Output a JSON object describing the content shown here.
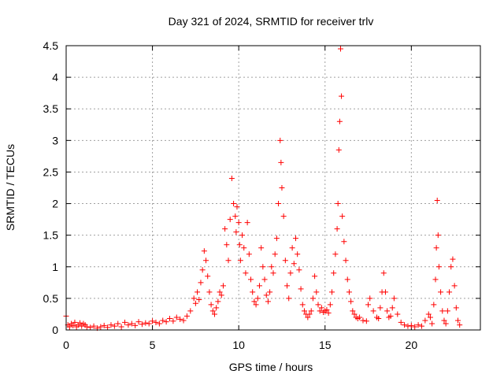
{
  "chart_data": {
    "type": "scatter",
    "title": "Day 321 of 2024, SRMTID for receiver trlv",
    "xlabel": "GPS time / hours",
    "ylabel": "SRMTID / TECUs",
    "xlim": [
      0,
      24
    ],
    "ylim": [
      0,
      4.5
    ],
    "x_ticks": [
      0,
      5,
      10,
      15,
      20
    ],
    "x_tick_labels": [
      "0",
      "5",
      "10",
      "15",
      "20"
    ],
    "y_ticks": [
      0,
      0.5,
      1,
      1.5,
      2,
      2.5,
      3,
      3.5,
      4,
      4.5
    ],
    "y_tick_labels": [
      "0",
      "0.5",
      "1",
      "1.5",
      "2",
      "2.5",
      "3",
      "3.5",
      "4",
      "4.5"
    ],
    "grid": true,
    "marker": "plus",
    "series": [
      {
        "name": "SRMTID",
        "color": "#ff0000",
        "x": [
          0.0,
          0.1,
          0.2,
          0.3,
          0.4,
          0.5,
          0.6,
          0.7,
          0.8,
          0.9,
          1.0,
          1.1,
          1.2,
          1.4,
          1.6,
          1.8,
          2.0,
          2.2,
          2.4,
          2.6,
          2.8,
          3.0,
          3.2,
          3.4,
          3.6,
          3.8,
          4.0,
          4.2,
          4.4,
          4.6,
          4.8,
          5.0,
          5.2,
          5.4,
          5.6,
          5.8,
          6.0,
          6.2,
          6.4,
          6.6,
          6.8,
          7.0,
          7.2,
          7.4,
          7.5,
          7.6,
          7.7,
          7.8,
          7.9,
          8.0,
          8.1,
          8.2,
          8.3,
          8.4,
          8.5,
          8.6,
          8.7,
          8.8,
          8.9,
          9.0,
          9.1,
          9.2,
          9.3,
          9.4,
          9.5,
          9.6,
          9.7,
          9.8,
          9.85,
          9.9,
          10.0,
          10.05,
          10.1,
          10.2,
          10.3,
          10.4,
          10.5,
          10.6,
          10.7,
          10.8,
          10.9,
          11.0,
          11.1,
          11.2,
          11.3,
          11.4,
          11.5,
          11.6,
          11.7,
          11.8,
          11.9,
          12.0,
          12.1,
          12.2,
          12.3,
          12.4,
          12.45,
          12.5,
          12.6,
          12.7,
          12.8,
          12.9,
          13.0,
          13.1,
          13.2,
          13.3,
          13.4,
          13.5,
          13.6,
          13.7,
          13.8,
          13.9,
          14.0,
          14.1,
          14.2,
          14.3,
          14.4,
          14.5,
          14.6,
          14.7,
          14.8,
          14.9,
          15.0,
          15.1,
          15.2,
          15.3,
          15.4,
          15.5,
          15.6,
          15.7,
          15.75,
          15.8,
          15.85,
          15.9,
          15.95,
          16.0,
          16.1,
          16.2,
          16.3,
          16.4,
          16.5,
          16.6,
          16.7,
          16.8,
          16.9,
          17.0,
          17.2,
          17.4,
          17.5,
          17.6,
          17.8,
          18.0,
          18.1,
          18.2,
          18.3,
          18.4,
          18.5,
          18.6,
          18.7,
          18.8,
          18.9,
          19.0,
          19.2,
          19.4,
          19.6,
          19.8,
          20.0,
          20.2,
          20.4,
          20.6,
          20.8,
          21.0,
          21.1,
          21.2,
          21.3,
          21.4,
          21.45,
          21.5,
          21.55,
          21.6,
          21.7,
          21.8,
          21.9,
          22.0,
          22.1,
          22.2,
          22.3,
          22.4,
          22.5,
          22.6,
          22.7,
          22.8
        ],
        "y": [
          0.22,
          0.08,
          0.05,
          0.1,
          0.07,
          0.12,
          0.05,
          0.08,
          0.11,
          0.06,
          0.1,
          0.08,
          0.05,
          0.04,
          0.06,
          0.03,
          0.05,
          0.07,
          0.04,
          0.08,
          0.06,
          0.1,
          0.05,
          0.12,
          0.08,
          0.1,
          0.07,
          0.13,
          0.09,
          0.11,
          0.1,
          0.14,
          0.12,
          0.1,
          0.15,
          0.13,
          0.18,
          0.14,
          0.2,
          0.17,
          0.15,
          0.22,
          0.3,
          0.5,
          0.42,
          0.6,
          0.48,
          0.75,
          0.95,
          1.25,
          1.1,
          0.85,
          0.6,
          0.4,
          0.3,
          0.25,
          0.35,
          0.45,
          0.6,
          0.55,
          0.7,
          1.6,
          1.35,
          1.1,
          1.75,
          2.4,
          2.0,
          1.8,
          1.55,
          1.95,
          1.7,
          1.35,
          1.1,
          1.5,
          1.3,
          0.9,
          1.7,
          1.2,
          0.8,
          0.6,
          0.45,
          0.4,
          0.5,
          0.7,
          1.3,
          1.0,
          0.8,
          0.55,
          0.45,
          0.6,
          1.0,
          0.9,
          1.2,
          1.45,
          2.0,
          3.0,
          2.65,
          2.25,
          1.8,
          1.1,
          0.7,
          0.5,
          0.9,
          1.3,
          1.05,
          1.45,
          1.2,
          0.95,
          0.65,
          0.4,
          0.3,
          0.25,
          0.2,
          0.25,
          0.3,
          0.5,
          0.85,
          0.6,
          0.4,
          0.3,
          0.35,
          0.28,
          0.3,
          0.32,
          0.27,
          0.4,
          0.6,
          0.9,
          1.2,
          1.6,
          2.0,
          2.85,
          3.3,
          4.45,
          3.7,
          1.8,
          1.4,
          1.1,
          0.8,
          0.6,
          0.45,
          0.3,
          0.25,
          0.2,
          0.18,
          0.2,
          0.15,
          0.14,
          0.4,
          0.5,
          0.3,
          0.2,
          0.18,
          0.35,
          0.6,
          0.9,
          0.6,
          0.3,
          0.2,
          0.22,
          0.35,
          0.5,
          0.25,
          0.12,
          0.08,
          0.06,
          0.07,
          0.05,
          0.08,
          0.06,
          0.15,
          0.25,
          0.2,
          0.1,
          0.4,
          0.8,
          1.3,
          2.05,
          1.5,
          1.0,
          0.6,
          0.3,
          0.15,
          0.1,
          0.3,
          0.6,
          1.0,
          1.12,
          0.7,
          0.35,
          0.15,
          0.08
        ]
      }
    ]
  }
}
